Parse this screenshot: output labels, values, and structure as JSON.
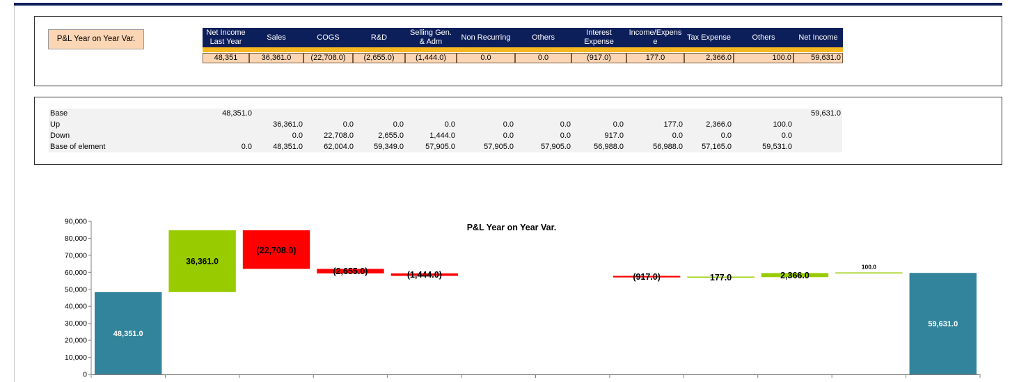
{
  "title_button": "P&L Year on Year Var.",
  "header": {
    "columns": [
      {
        "label": "Net Income\nLast Year",
        "value": "48,351"
      },
      {
        "label": "Sales",
        "value": "36,361.0"
      },
      {
        "label": "COGS",
        "value": "(22,708.0)"
      },
      {
        "label": "R&D",
        "value": "(2,655.0)"
      },
      {
        "label": "Selling Gen.\n& Adm",
        "value": "(1,444.0)"
      },
      {
        "label": "Non Recurring",
        "value": "0.0"
      },
      {
        "label": "Others",
        "value": "0.0"
      },
      {
        "label": "Interest\nExpense",
        "value": "(917.0)"
      },
      {
        "label": "Income/Expens\ne",
        "value": "177.0"
      },
      {
        "label": "Tax Expense",
        "value": "2,366.0"
      },
      {
        "label": "Others",
        "value": "100.0"
      },
      {
        "label": "Net Income",
        "value": "59,631.0"
      }
    ]
  },
  "calc_table": {
    "rows": [
      {
        "label": "Base",
        "cells": [
          "48,351.0",
          "",
          "",
          "",
          "",
          "",
          "",
          "",
          "",
          "",
          "",
          "59,631.0"
        ]
      },
      {
        "label": "Up",
        "cells": [
          "",
          "36,361.0",
          "0.0",
          "0.0",
          "0.0",
          "0.0",
          "0.0",
          "0.0",
          "177.0",
          "2,366.0",
          "100.0",
          ""
        ]
      },
      {
        "label": "Down",
        "cells": [
          "",
          "0.0",
          "22,708.0",
          "2,655.0",
          "1,444.0",
          "0.0",
          "0.0",
          "917.0",
          "0.0",
          "0.0",
          "0.0",
          ""
        ]
      },
      {
        "label": "Base of element",
        "cells": [
          "0.0",
          "48,351.0",
          "62,004.0",
          "59,349.0",
          "57,905.0",
          "57,905.0",
          "57,905.0",
          "56,988.0",
          "56,988.0",
          "57,165.0",
          "59,531.0",
          ""
        ]
      }
    ]
  },
  "colors": {
    "base": "#31849b",
    "up": "#99cc00",
    "down": "#ff0000",
    "header": "#0d1f5a",
    "stripe": "#f7b820",
    "value_row": "#fcd5b4"
  },
  "chart_data": {
    "type": "bar",
    "subtype": "waterfall",
    "title": "P&L Year on Year Var.",
    "xlabel": "",
    "ylabel": "",
    "ylim": [
      0,
      90000
    ],
    "yticks": [
      "0",
      "10,000",
      "20,000",
      "30,000",
      "40,000",
      "50,000",
      "60,000",
      "70,000",
      "80,000",
      "90,000"
    ],
    "legend": "none",
    "bars": [
      {
        "kind": "base",
        "start": 0,
        "end": 48351,
        "label": "48,351.0"
      },
      {
        "kind": "up",
        "start": 48351,
        "end": 84712,
        "label": "36,361.0"
      },
      {
        "kind": "down",
        "start": 84712,
        "end": 62004,
        "label": "(22,708.0)"
      },
      {
        "kind": "down",
        "start": 62004,
        "end": 59349,
        "label": "(2,655.0)"
      },
      {
        "kind": "down",
        "start": 59349,
        "end": 57905,
        "label": "(1,444.0)"
      },
      {
        "kind": "none",
        "start": 57905,
        "end": 57905,
        "label": ""
      },
      {
        "kind": "none",
        "start": 57905,
        "end": 57905,
        "label": ""
      },
      {
        "kind": "down",
        "start": 57905,
        "end": 56988,
        "label": "(917.0)"
      },
      {
        "kind": "up",
        "start": 56988,
        "end": 57165,
        "label": "177.0"
      },
      {
        "kind": "up",
        "start": 57165,
        "end": 59531,
        "label": "2,366.0"
      },
      {
        "kind": "up",
        "start": 59531,
        "end": 59631,
        "label": "100.0"
      },
      {
        "kind": "base",
        "start": 0,
        "end": 59631,
        "label": "59,631.0"
      }
    ]
  }
}
